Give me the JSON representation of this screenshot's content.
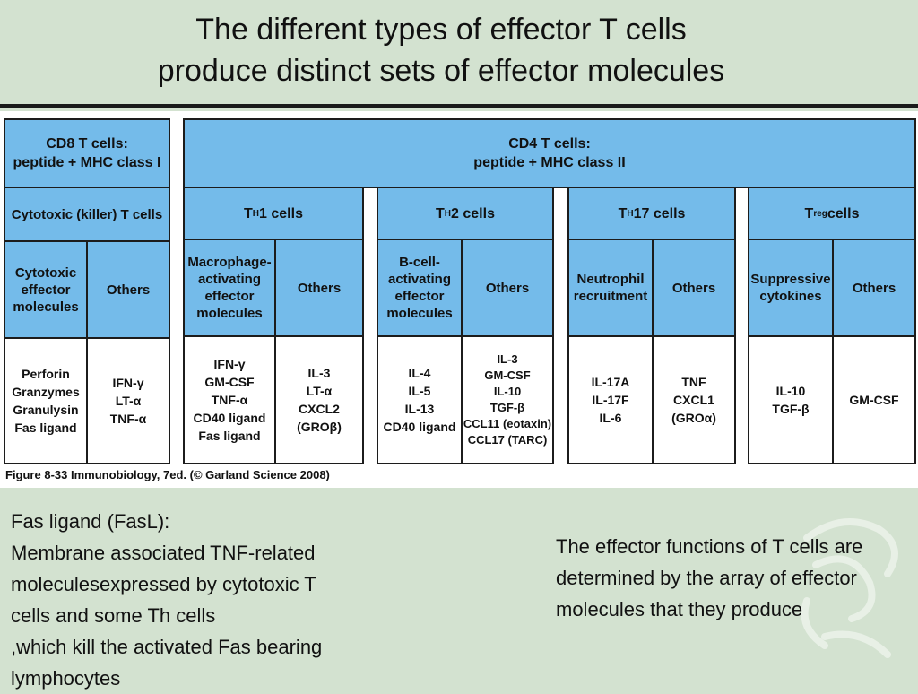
{
  "slide": {
    "title_line1": "The different types of effector T cells",
    "title_line2": "produce distinct sets of effector molecules",
    "left_note": {
      "line1": "Fas ligand (FasL):",
      "line2": "Membrane associated TNF-related",
      "line3": "moleculesexpressed by cytotoxic T",
      "line4": "cells and some Th cells",
      "line5": ",which kill the activated Fas bearing",
      "line6": "lymphocytes"
    },
    "right_note": "The effector functions of T cells are determined by the array of effector molecules that they produce"
  },
  "figure": {
    "caption": "Figure 8-33  Immunobiology, 7ed. (© Garland Science 2008)",
    "cd8": {
      "header": "CD8 T cells:\npeptide + MHC class I",
      "type": "Cytotoxic (killer) T cells",
      "col1_head": "Cytotoxic\neffector\nmolecules",
      "col2_head": "Others",
      "col1_vals": "Perforin\nGranzymes\nGranulysin\nFas ligand",
      "col2_vals": "IFN-γ\nLT-α\nTNF-α"
    },
    "cd4": {
      "header": "CD4 T cells:\npeptide + MHC class II",
      "th1": {
        "type_main": "T",
        "type_sub": "H",
        "type_rest": "1 cells",
        "col1_head": "Macrophage-\nactivating\neffector\nmolecules",
        "col2_head": "Others",
        "col1_vals": "IFN-γ\nGM-CSF\nTNF-α\nCD40 ligand\nFas ligand",
        "col2_vals": "IL-3\nLT-α\nCXCL2 (GROβ)"
      },
      "th2": {
        "type_main": "T",
        "type_sub": "H",
        "type_rest": "2 cells",
        "col1_head": "B-cell-\nactivating\neffector\nmolecules",
        "col2_head": "Others",
        "col1_vals": "IL-4\nIL-5\nIL-13\nCD40 ligand",
        "col2_vals": "IL-3\nGM-CSF\nIL-10\nTGF-β\nCCL11 (eotaxin)\nCCL17 (TARC)"
      },
      "th17": {
        "type_main": "T",
        "type_sub": "H",
        "type_rest": "17 cells",
        "col1_head": "Neutrophil\nrecruitment",
        "col2_head": "Others",
        "col1_vals": "IL-17A\nIL-17F\nIL-6",
        "col2_vals": "TNF\nCXCL1\n(GROα)"
      },
      "treg": {
        "type_main": "T",
        "type_sub": "reg",
        "type_rest": " cells",
        "col1_head": "Suppressive\ncytokines",
        "col2_head": "Others",
        "col1_vals": "IL-10\nTGF-β",
        "col2_vals": "GM-CSF"
      }
    }
  },
  "colors": {
    "background": "#d3e2d0",
    "header_blue": "#74bbea",
    "border": "#1c1c1c"
  }
}
